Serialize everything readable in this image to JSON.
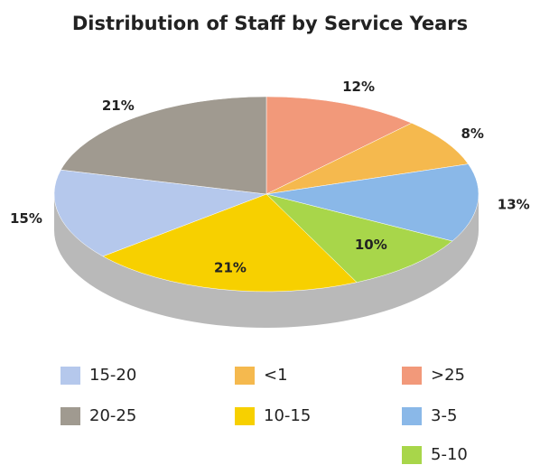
{
  "chart_data": {
    "type": "pie",
    "title": "Distribution of Staff by Service Years",
    "categories": [
      ">25",
      "<1",
      "3-5",
      "5-10",
      "10-15",
      "15-20",
      "20-25"
    ],
    "values": [
      12,
      8,
      13,
      10,
      21,
      15,
      21
    ],
    "value_labels": [
      "12%",
      "8%",
      "13%",
      "10%",
      "21%",
      "15%",
      "21%"
    ],
    "colors": [
      "#f2997a",
      "#f5b94e",
      "#8ab8e8",
      "#a8d64a",
      "#f7d000",
      "#b5c8ec",
      "#a09a90"
    ]
  }
}
